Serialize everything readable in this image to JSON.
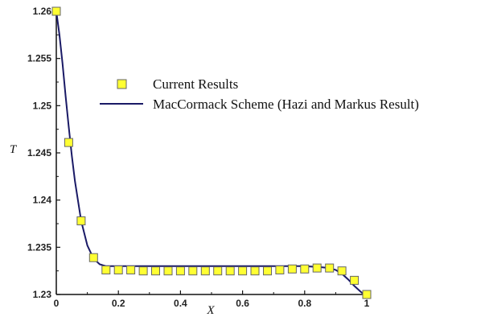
{
  "chart_data": {
    "type": "line",
    "xlabel": "X",
    "ylabel": "T",
    "xlim": [
      0,
      1
    ],
    "ylim": [
      1.23,
      1.26
    ],
    "x_ticks": [
      0,
      0.2,
      0.4,
      0.6,
      0.8,
      1
    ],
    "x_tick_labels": [
      "0",
      "0.2",
      "0.4",
      "0.6",
      "0.8",
      "1"
    ],
    "y_ticks": [
      1.23,
      1.235,
      1.24,
      1.245,
      1.25,
      1.255,
      1.26
    ],
    "y_tick_labels": [
      "1.23",
      "1.235",
      "1.24",
      "1.245",
      "1.25",
      "1.255",
      "1.26"
    ],
    "grid": false,
    "legend_position": "top-right",
    "series": [
      {
        "name": "Current Results",
        "kind": "markers",
        "marker": "square",
        "color": "#ffff33",
        "edge_color": "#666666",
        "x": [
          0,
          0.04,
          0.08,
          0.12,
          0.16,
          0.2,
          0.24,
          0.28,
          0.32,
          0.36,
          0.4,
          0.44,
          0.48,
          0.52,
          0.56,
          0.6,
          0.64,
          0.68,
          0.72,
          0.76,
          0.8,
          0.84,
          0.88,
          0.92,
          0.96,
          1.0
        ],
        "y": [
          1.26,
          1.2461,
          1.2378,
          1.2339,
          1.2326,
          1.2326,
          1.2326,
          1.2325,
          1.2325,
          1.2325,
          1.2325,
          1.2325,
          1.2325,
          1.2325,
          1.2325,
          1.2325,
          1.2325,
          1.2325,
          1.2326,
          1.2327,
          1.2327,
          1.2328,
          1.2328,
          1.2325,
          1.2315,
          1.23
        ]
      },
      {
        "name": "MacCormack Scheme (Hazi and Markus Result)",
        "kind": "line",
        "color": "#1a1a66",
        "x": [
          0,
          0.01,
          0.02,
          0.03,
          0.04,
          0.05,
          0.06,
          0.08,
          0.1,
          0.12,
          0.14,
          0.16,
          0.2,
          0.3,
          0.4,
          0.5,
          0.6,
          0.7,
          0.8,
          0.85,
          0.88,
          0.9,
          0.92,
          0.94,
          0.96,
          0.98,
          1.0
        ],
        "y": [
          1.26,
          1.2575,
          1.2545,
          1.251,
          1.2478,
          1.2447,
          1.242,
          1.2378,
          1.2352,
          1.2338,
          1.2332,
          1.233,
          1.233,
          1.233,
          1.233,
          1.233,
          1.233,
          1.233,
          1.233,
          1.2329,
          1.2328,
          1.2326,
          1.2322,
          1.2316,
          1.2309,
          1.2303,
          1.2298
        ]
      }
    ]
  }
}
